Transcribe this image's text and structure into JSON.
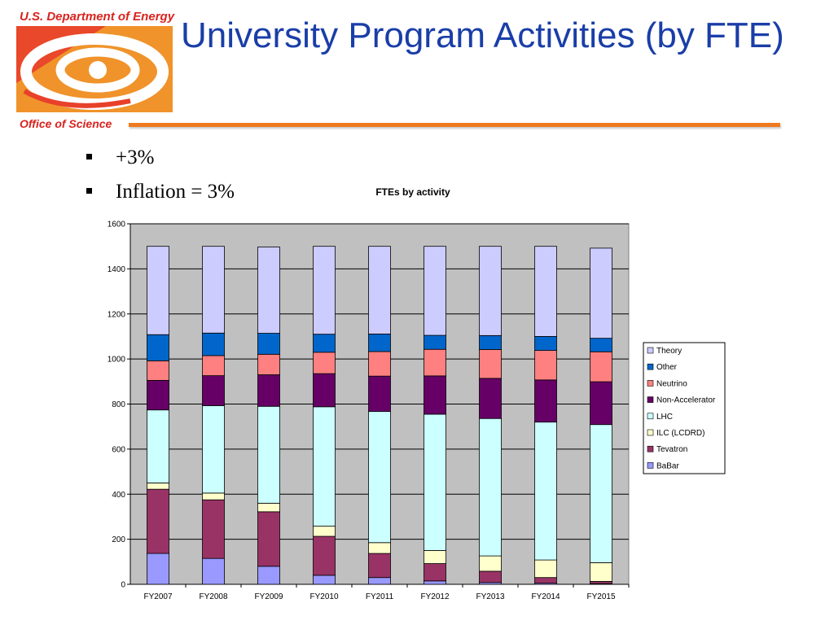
{
  "header": {
    "org_name": "U.S. Department of Energy",
    "office_name": "Office of Science",
    "title": "University Program Activities (by FTE)"
  },
  "bullets": [
    "+3%",
    "Inflation = 3%"
  ],
  "colors": {
    "title": "#1a3ea8",
    "logo_red": "#d9231e",
    "logo_orange": "#f07a1f",
    "plot_background": "#c0c0c0"
  },
  "chart_data": {
    "type": "bar",
    "stacked": true,
    "title": "FTEs by activity",
    "xlabel": "",
    "ylabel": "",
    "ylim": [
      0,
      1600
    ],
    "yticks": [
      0,
      200,
      400,
      600,
      800,
      1000,
      1200,
      1400,
      1600
    ],
    "grid": true,
    "legend_position": "right",
    "categories": [
      "FY2007",
      "FY2008",
      "FY2009",
      "FY2010",
      "FY2011",
      "FY2012",
      "FY2013",
      "FY2014",
      "FY2015"
    ],
    "series": [
      {
        "name": "BaBar",
        "color": "#9999ff",
        "values": [
          137,
          115,
          80,
          40,
          30,
          15,
          8,
          5,
          3
        ]
      },
      {
        "name": "Tevatron",
        "color": "#993366",
        "values": [
          285,
          260,
          242,
          173,
          107,
          77,
          50,
          25,
          10
        ]
      },
      {
        "name": "ILC (LCDRD)",
        "color": "#ffffcc",
        "values": [
          28,
          30,
          38,
          45,
          48,
          58,
          68,
          78,
          83
        ]
      },
      {
        "name": "LHC",
        "color": "#ccffff",
        "values": [
          324,
          388,
          430,
          530,
          582,
          605,
          610,
          612,
          613
        ]
      },
      {
        "name": "Non-Accelerator",
        "color": "#660066",
        "values": [
          131,
          133,
          140,
          147,
          157,
          170,
          178,
          187,
          190
        ]
      },
      {
        "name": "Neutrino",
        "color": "#ff8080",
        "values": [
          87,
          89,
          91,
          95,
          109,
          118,
          128,
          131,
          133
        ]
      },
      {
        "name": "Other",
        "color": "#0066cc",
        "values": [
          116,
          100,
          93,
          80,
          78,
          62,
          62,
          62,
          60
        ]
      },
      {
        "name": "Theory",
        "color": "#ccccff",
        "values": [
          392,
          385,
          383,
          390,
          389,
          395,
          396,
          400,
          400
        ]
      }
    ]
  }
}
